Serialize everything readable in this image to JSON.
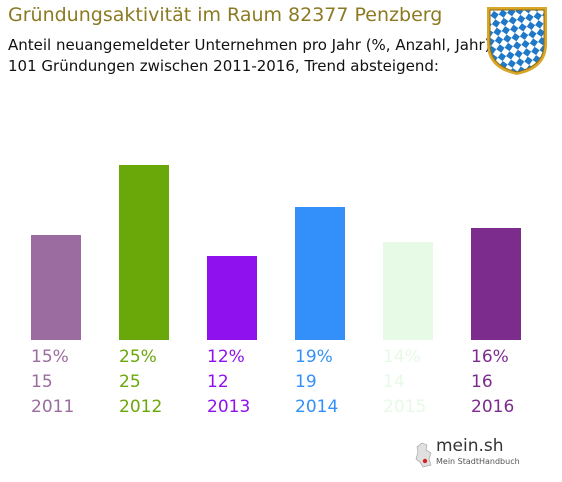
{
  "header": {
    "title": "Gründungsaktivität im Raum 82377 Penzberg",
    "subtitle1": "Anteil neuangemeldeter Unternehmen pro Jahr (%, Anzahl, Jahr)",
    "subtitle2": "101 Gründungen zwischen 2011-2016, Trend absteigend:"
  },
  "logo": {
    "name": "mein.sh",
    "tagline": "Mein StadtHandbuch"
  },
  "chart_data": {
    "type": "bar",
    "categories": [
      "2011",
      "2012",
      "2013",
      "2014",
      "2015",
      "2016"
    ],
    "series": [
      {
        "values": [
          15,
          25,
          12,
          19,
          14,
          16
        ],
        "percent_labels": [
          "15%",
          "25%",
          "12%",
          "19%",
          "14%",
          "16%"
        ],
        "count_labels": [
          "15",
          "25",
          "12",
          "19",
          "14",
          "16"
        ]
      }
    ],
    "colors": [
      "#9b6c9f",
      "#6aa80a",
      "#8f12ee",
      "#3390fa",
      "#e6fae6",
      "#7b2c8c"
    ]
  }
}
